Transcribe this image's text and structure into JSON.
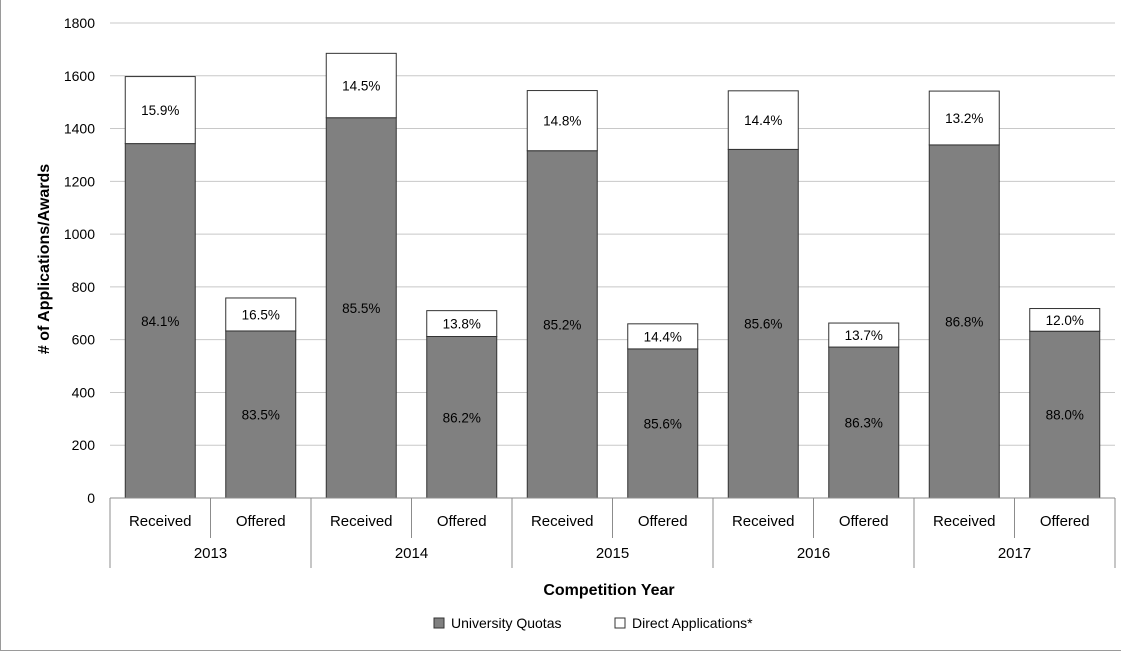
{
  "chart_data": {
    "type": "bar",
    "stacked": true,
    "title": "",
    "xlabel": "Competition Year",
    "ylabel": "# of Applications/Awards",
    "ylim": [
      0,
      1800
    ],
    "yticks": [
      0,
      200,
      400,
      600,
      800,
      1000,
      1200,
      1400,
      1600,
      1800
    ],
    "grid": true,
    "legend_position": "bottom",
    "groups": [
      "2013",
      "2014",
      "2015",
      "2016",
      "2017"
    ],
    "categories": [
      "Received",
      "Offered",
      "Received",
      "Offered",
      "Received",
      "Offered",
      "Received",
      "Offered",
      "Received",
      "Offered"
    ],
    "series": [
      {
        "name": "University Quotas",
        "color": "#808080",
        "values": [
          1343,
          633,
          1441,
          612,
          1316,
          565,
          1321,
          572,
          1338,
          632
        ],
        "labels": [
          "84.1%",
          "83.5%",
          "85.5%",
          "86.2%",
          "85.2%",
          "85.6%",
          "85.6%",
          "86.3%",
          "86.8%",
          "88.0%"
        ]
      },
      {
        "name": "Direct Applications*",
        "color": "#ffffff",
        "values": [
          254,
          125,
          244,
          98,
          228,
          95,
          222,
          91,
          204,
          86
        ],
        "labels": [
          "15.9%",
          "16.5%",
          "14.5%",
          "13.8%",
          "14.8%",
          "14.4%",
          "14.4%",
          "13.7%",
          "13.2%",
          "12.0%"
        ]
      }
    ]
  }
}
